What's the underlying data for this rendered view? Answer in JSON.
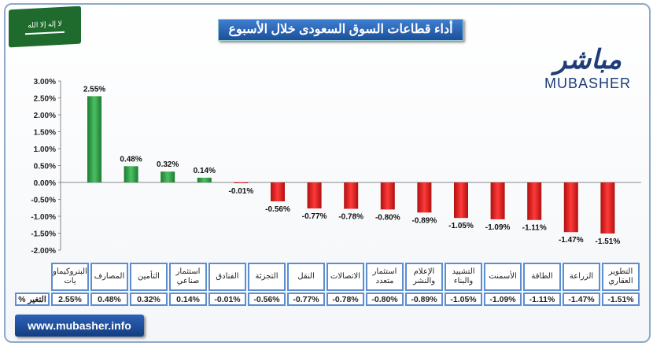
{
  "title": "أداء قطاعات السوق السعودى خلال الأسبوع",
  "logo": {
    "arabic": "مباشر",
    "english": "MUBASHER"
  },
  "website": "www.mubasher.info",
  "colors": {
    "positive": "#2e9e44",
    "negative": "#e02020"
  },
  "chart_data": {
    "type": "bar",
    "title": "أداء قطاعات السوق السعودى خلال الأسبوع",
    "categories": [
      "البتروكيماويات",
      "المصارف",
      "التأمين",
      "استثمار صناعي",
      "الفنادق",
      "التجزئة",
      "النقل",
      "الاتصالات",
      "استثمار متعدد",
      "الإعلام والنشر",
      "التشييد والبناء",
      "الأسمنت",
      "الطاقة",
      "الزراعة",
      "التطوير العقاري"
    ],
    "category_labels": [
      "البتروكيماو يات",
      "المصارف",
      "التأمين",
      "استثمار صناعي",
      "الفنادق",
      "التجزئة",
      "النقل",
      "الاتصالات",
      "استثمار متعدد",
      "الإعلام والنشر",
      "التشييد والبناء",
      "الأسمنت",
      "الطاقة",
      "الزراعة",
      "التطوير العقاري"
    ],
    "values": [
      2.55,
      0.48,
      0.32,
      0.14,
      -0.01,
      -0.56,
      -0.77,
      -0.78,
      -0.8,
      -0.89,
      -1.05,
      -1.09,
      -1.11,
      -1.47,
      -1.51
    ],
    "data_labels": [
      "2.55%",
      "0.48%",
      "0.32%",
      "0.14%",
      "-0.01%",
      "-0.56%",
      "-0.77%",
      "-0.78%",
      "-0.80%",
      "-0.89%",
      "-1.05%",
      "-1.09%",
      "-1.11%",
      "-1.47%",
      "-1.51%"
    ],
    "yticks": [
      "3.00%",
      "2.50%",
      "2.00%",
      "1.50%",
      "1.00%",
      "0.50%",
      "0.00%",
      "-0.50%",
      "-1.00%",
      "-1.50%",
      "-2.00%"
    ],
    "ylim": [
      -2.0,
      3.0
    ],
    "row_label": "التغير %",
    "grid": false
  }
}
